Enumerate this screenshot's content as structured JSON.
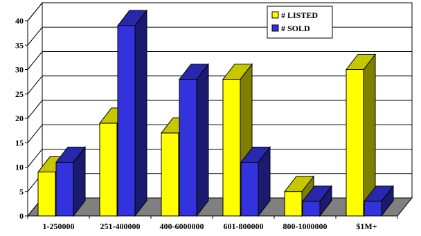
{
  "chart_data": {
    "type": "bar",
    "title": "",
    "xlabel": "",
    "ylabel": "",
    "categories": [
      "1-250000",
      "251-400000",
      "400-6000000",
      "601-800000",
      "800-1000000",
      "$1M+"
    ],
    "series": [
      {
        "name": "# LISTED",
        "values": [
          9,
          19,
          17,
          28,
          5,
          30
        ],
        "color": "#ffff00"
      },
      {
        "name": "# SOLD",
        "values": [
          11,
          39,
          28,
          11,
          3,
          3
        ],
        "color": "#3333dd"
      }
    ],
    "ylim": [
      0,
      40
    ],
    "yticks": [
      0,
      5,
      10,
      15,
      20,
      25,
      30,
      35,
      40
    ],
    "grid": true,
    "legend_position": "top-right",
    "style": "3d-column"
  }
}
